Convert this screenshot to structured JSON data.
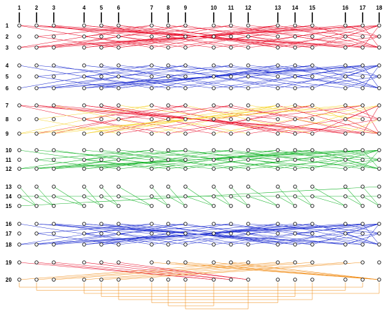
{
  "columns": [
    "1",
    "2",
    "3",
    "4",
    "5",
    "6",
    "7",
    "8",
    "9",
    "10",
    "11",
    "12",
    "13",
    "14",
    "15",
    "16",
    "17",
    "18"
  ],
  "rows": [
    "1",
    "2",
    "3",
    "4",
    "5",
    "6",
    "7",
    "8",
    "9",
    "10",
    "11",
    "12",
    "13",
    "14",
    "15",
    "16",
    "17",
    "18",
    "19",
    "20"
  ],
  "colors": {
    "red": "#e8112d",
    "blue": "#1f2fd0",
    "yellow": "#f6d32a",
    "green": "#16b32a",
    "orange": "#f08a12",
    "node_stroke": "#111111",
    "marker": "#000000"
  }
}
